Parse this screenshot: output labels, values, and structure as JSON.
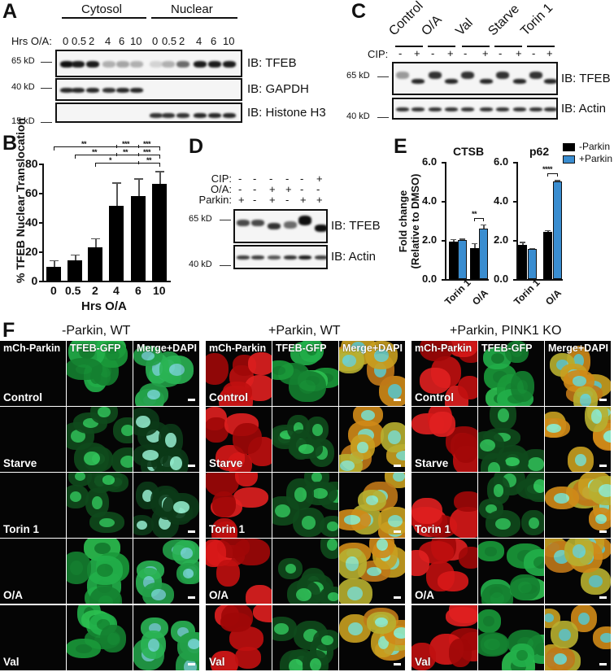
{
  "panels": {
    "A": {
      "label": "A",
      "groups": [
        {
          "name": "Cytosol"
        },
        {
          "name": "Nuclear"
        }
      ],
      "row_label": "Hrs O/A:",
      "lanes": [
        "0",
        "0.5",
        "2",
        "4",
        "6",
        "10",
        "0",
        "0.5",
        "2",
        "4",
        "6",
        "10"
      ],
      "blots": [
        {
          "ib": "IB: TFEB",
          "mw": "65 kD",
          "intensity": [
            1,
            0.95,
            0.95,
            0.3,
            0.35,
            0.3,
            0.15,
            0.3,
            0.6,
            0.95,
            0.95,
            0.95
          ]
        },
        {
          "ib": "IB: GAPDH",
          "mw": "40 kD",
          "intensity": [
            0.9,
            0.9,
            0.9,
            0.85,
            0.9,
            0.9,
            0,
            0,
            0,
            0,
            0,
            0
          ]
        },
        {
          "ib": "IB: Histone H3",
          "mw": "15 kD",
          "intensity": [
            0,
            0,
            0,
            0,
            0,
            0,
            0.85,
            0.85,
            0.85,
            0.9,
            0.9,
            0.9
          ]
        }
      ]
    },
    "B": {
      "label": "B",
      "sig": [
        {
          "text": "**",
          "from": "0",
          "to": "4"
        },
        {
          "text": "***",
          "from": "4",
          "to": "6"
        },
        {
          "text": "***",
          "from": "6",
          "to": "10"
        },
        {
          "text": "**",
          "from": "0.5",
          "to": "4"
        },
        {
          "text": "**",
          "from": "4",
          "to": "6"
        },
        {
          "text": "***",
          "from": "6",
          "to": "10"
        },
        {
          "text": "*",
          "from": "2",
          "to": "6"
        },
        {
          "text": "**",
          "from": "6",
          "to": "10"
        }
      ]
    },
    "C": {
      "label": "C",
      "conditions": [
        "Control",
        "O/A",
        "Val",
        "Starve",
        "Torin 1"
      ],
      "row_label": "CIP:",
      "cip": [
        "-",
        "+",
        "-",
        "+",
        "-",
        "+",
        "-",
        "+",
        "-",
        "+"
      ],
      "blots": [
        {
          "ib": "IB: TFEB",
          "mw": "65 kD"
        },
        {
          "ib": "IB: Actin",
          "mw": "40 kD"
        }
      ]
    },
    "D": {
      "label": "D",
      "rows": [
        {
          "label": "CIP:",
          "values": [
            "-",
            "-",
            "-",
            "-",
            "-",
            "+"
          ]
        },
        {
          "label": "O/A:",
          "values": [
            "-",
            "-",
            "+",
            "+",
            "-",
            "-"
          ]
        },
        {
          "label": "Parkin:",
          "values": [
            "+",
            "-",
            "+",
            "-",
            "+",
            "+"
          ]
        }
      ],
      "blots": [
        {
          "ib": "IB: TFEB",
          "mw": "65 kD"
        },
        {
          "ib": "IB: Actin",
          "mw": "40 kD"
        }
      ]
    },
    "E": {
      "label": "E",
      "ylabel_line1": "Fold change",
      "ylabel_line2": "(Relative to DMSO)",
      "legend": [
        {
          "label": "-Parkin",
          "color": "#000000"
        },
        {
          "label": "+Parkin",
          "color": "#3a8dd0"
        }
      ]
    },
    "F": {
      "label": "F",
      "groups": [
        {
          "title": "-Parkin, WT"
        },
        {
          "title": "+Parkin, WT"
        },
        {
          "title": "+Parkin, PINK1 KO"
        }
      ],
      "channels": [
        "mCh-Parkin",
        "TFEB-GFP",
        "Merge+DAPI"
      ],
      "conditions": [
        "Control",
        "Starve",
        "Torin 1",
        "O/A",
        "Val"
      ]
    }
  },
  "chart_data": [
    {
      "type": "bar",
      "panel": "B",
      "title": "",
      "xlabel": "Hrs O/A",
      "ylabel": "% TFEB Nuclear Translocation",
      "categories": [
        "0",
        "0.5",
        "2",
        "4",
        "6",
        "10"
      ],
      "values": [
        9.5,
        14,
        23,
        51,
        58,
        66
      ],
      "error_upper": [
        14,
        18,
        29,
        67,
        70,
        75
      ],
      "ylim": [
        0,
        80
      ],
      "yticks": [
        "0",
        "20",
        "40",
        "60",
        "80"
      ],
      "color": "#000000",
      "grid": false
    },
    {
      "type": "bar",
      "panel": "E",
      "title": "CTSB",
      "ylabel": "Fold change (Relative to DMSO)",
      "categories": [
        "Torin 1",
        "O/A"
      ],
      "series": [
        {
          "name": "-Parkin",
          "values": [
            1.9,
            1.6
          ],
          "error_upper": [
            2.05,
            1.85
          ]
        },
        {
          "name": "+Parkin",
          "values": [
            2.0,
            2.6
          ],
          "error_upper": [
            2.07,
            2.8
          ]
        }
      ],
      "ylim": [
        0,
        6
      ],
      "yticks": [
        "0.0",
        "2.0",
        "4.0",
        "6.0"
      ],
      "annotations": [
        {
          "text": "**",
          "category": "O/A"
        }
      ],
      "legend_position": "right"
    },
    {
      "type": "bar",
      "panel": "E",
      "title": "p62",
      "ylabel": "Fold change (Relative to DMSO)",
      "categories": [
        "Torin 1",
        "O/A"
      ],
      "series": [
        {
          "name": "-Parkin",
          "values": [
            1.75,
            2.4
          ],
          "error_upper": [
            1.9,
            2.52
          ]
        },
        {
          "name": "+Parkin",
          "values": [
            1.55,
            5.0
          ],
          "error_upper": [
            1.6,
            5.08
          ]
        }
      ],
      "ylim": [
        0,
        6
      ],
      "yticks": [
        "0.0",
        "2.0",
        "4.0",
        "6.0"
      ],
      "annotations": [
        {
          "text": "****",
          "category": "O/A"
        }
      ],
      "legend_position": "right"
    }
  ]
}
